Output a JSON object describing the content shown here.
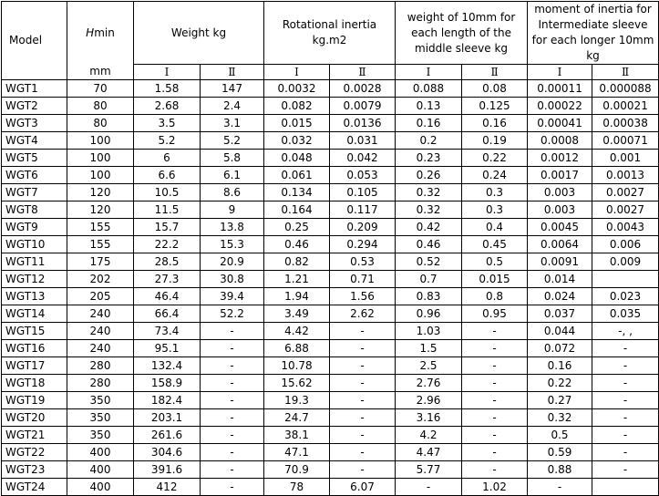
{
  "header": {
    "model": "Model",
    "h_min": [
      "H",
      "min"
    ],
    "h_unit": "mm",
    "groups": [
      "Weight kg",
      "Rotational inertia kg.m2",
      "weight of 10mm for each length of the middle sleeve  kg",
      "moment of inertia for Intermediate sleeve for each longer 10mm  kg"
    ],
    "sub": [
      "Ⅰ",
      "Ⅱ"
    ]
  },
  "table": {
    "rows": [
      [
        "WGT1",
        "70",
        "1.58",
        "147",
        "0.0032",
        "0.0028",
        "0.088",
        "0.08",
        "0.00011",
        "0.000088"
      ],
      [
        "WGT2",
        "80",
        "2.68",
        "2.4",
        "0.082",
        "0.0079",
        "0.13",
        "0.125",
        "0.00022",
        "0.00021"
      ],
      [
        "WGT3",
        "80",
        "3.5",
        "3.1",
        "0.015",
        "0.0136",
        "0.16",
        "0.16",
        "0.00041",
        "0.00038"
      ],
      [
        "WGT4",
        "100",
        "5.2",
        "5.2",
        "0.032",
        "0.031",
        "0.2",
        "0.19",
        "0.0008",
        "0.00071"
      ],
      [
        "WGT5",
        "100",
        "6",
        "5.8",
        "0.048",
        "0.042",
        "0.23",
        "0.22",
        "0.0012",
        "0.001"
      ],
      [
        "WGT6",
        "100",
        "6.6",
        "6.1",
        "0.061",
        "0.053",
        "0.26",
        "0.24",
        "0.0017",
        "0.0013"
      ],
      [
        "WGT7",
        "120",
        "10.5",
        "8.6",
        "0.134",
        "0.105",
        "0.32",
        "0.3",
        "0.003",
        "0.0027"
      ],
      [
        "WGT8",
        "120",
        "11.5",
        "9",
        "0.164",
        "0.117",
        "0.32",
        "0.3",
        "0.003",
        "0.0027"
      ],
      [
        "WGT9",
        "155",
        "15.7",
        "13.8",
        "0.25",
        "0.209",
        "0.42",
        "0.4",
        "0.0045",
        "0.0043"
      ],
      [
        "WGT10",
        "155",
        "22.2",
        "15.3",
        "0.46",
        "0.294",
        "0.46",
        "0.45",
        "0.0064",
        "0.006"
      ],
      [
        "WGT11",
        "175",
        "28.5",
        "20.9",
        "0.82",
        "0.53",
        "0.52",
        "0.5",
        "0.0091",
        "0.009"
      ],
      [
        "WGT12",
        "202",
        "27.3",
        "30.8",
        "1.21",
        "0.71",
        "0.7",
        "0.015",
        "0.014",
        null
      ],
      [
        "WGT13",
        "205",
        "46.4",
        "39.4",
        "1.94",
        "1.56",
        "0.83",
        "0.8",
        "0.024",
        "0.023"
      ],
      [
        "WGT14",
        "240",
        "66.4",
        "52.2",
        "3.49",
        "2.62",
        "0.96",
        "0.95",
        "0.037",
        "0.035"
      ],
      [
        "WGT15",
        "240",
        "73.4",
        "-",
        "4.42",
        "-",
        "1.03",
        "-",
        "0.044",
        "-, ,"
      ],
      [
        "WGT16",
        "240",
        "95.1",
        "-",
        "6.88",
        "-",
        "1.5",
        "-",
        "0.072",
        "-"
      ],
      [
        "WGT17",
        "280",
        "132.4",
        "-",
        "10.78",
        "-",
        "2.5",
        "-",
        "0.16",
        "-"
      ],
      [
        "WGT18",
        "280",
        "158.9",
        "-",
        "15.62",
        "-",
        "2.76",
        "-",
        "0.22",
        "-"
      ],
      [
        "WGT19",
        "350",
        "182.4",
        "-",
        "19.3",
        "-",
        "2.96",
        "-",
        "0.27",
        "-"
      ],
      [
        "WGT20",
        "350",
        "203.1",
        "-",
        "24.7",
        "-",
        "3.16",
        "-",
        "0.32",
        "-"
      ],
      [
        "WGT21",
        "350",
        "261.6",
        "-",
        "38.1",
        "-",
        "4.2",
        "-",
        "0.5",
        "-"
      ],
      [
        "WGT22",
        "400",
        "304.6",
        "-",
        "47.1",
        "-",
        "4.47",
        "-",
        "0.59",
        "-"
      ],
      [
        "WGT23",
        "400",
        "391.6",
        "-",
        "70.9",
        "-",
        "5.77",
        "-",
        "0.88",
        "-"
      ],
      [
        "WGT24",
        "400",
        "412",
        "-",
        "78",
        "6.07",
        "-",
        "1.02",
        "-",
        null
      ]
    ]
  }
}
